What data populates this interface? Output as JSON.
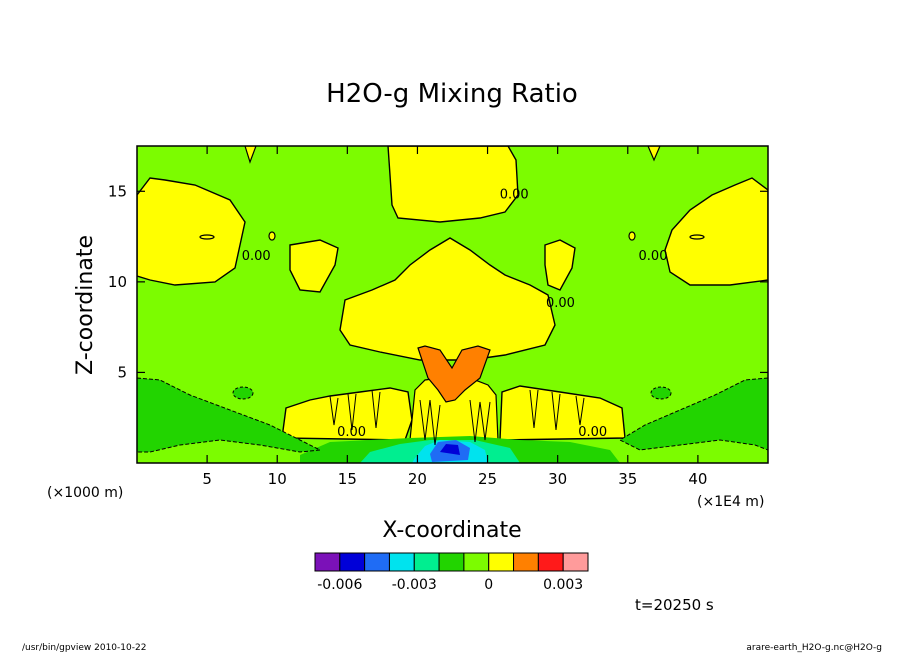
{
  "chart_data": {
    "type": "heatmap",
    "title": "H2O-g Mixing Ratio",
    "xlabel": "X-coordinate",
    "ylabel": "Z-coordinate",
    "x_unit_label": "(×1E4 m)",
    "y_unit_label": "(×1000 m)",
    "xlim": [
      0,
      45
    ],
    "ylim": [
      0,
      17.5
    ],
    "x_ticks": [
      5,
      10,
      15,
      20,
      25,
      30,
      35,
      40
    ],
    "y_ticks": [
      5,
      10,
      15
    ],
    "colorbar": {
      "levels": [
        -0.007,
        -0.006,
        -0.005,
        -0.004,
        -0.003,
        -0.002,
        -0.001,
        0,
        0.001,
        0.002,
        0.003,
        0.004
      ],
      "colors": [
        "#7b11b8",
        "#0000d8",
        "#1f6cf5",
        "#00e3ee",
        "#00ee90",
        "#22d400",
        "#7cfc00",
        "#ffff00",
        "#ff8000",
        "#ff1a1a",
        "#ff9b9b"
      ],
      "tick_labels": [
        {
          "value": -0.006,
          "label": "-0.006"
        },
        {
          "value": -0.003,
          "label": "-0.003"
        },
        {
          "value": 0,
          "label": "0"
        },
        {
          "value": 0.003,
          "label": "0.003"
        }
      ]
    },
    "contour_labels": [
      {
        "x": 26.9,
        "z": 14.6,
        "text": "0.00"
      },
      {
        "x": 8.5,
        "z": 11.2,
        "text": "0.00"
      },
      {
        "x": 36.8,
        "z": 11.2,
        "text": "0.00"
      },
      {
        "x": 30.2,
        "z": 8.6,
        "text": "0.00"
      },
      {
        "x": 15.3,
        "z": 1.5,
        "text": "0.00"
      },
      {
        "x": 32.5,
        "z": 1.5,
        "text": "0.00"
      }
    ],
    "time_annotation": "t=20250 s"
  },
  "footer": {
    "left": "/usr/bin/gpview  2010-10-22",
    "right": "arare-earth_H2O-g.nc@H2O-g"
  }
}
